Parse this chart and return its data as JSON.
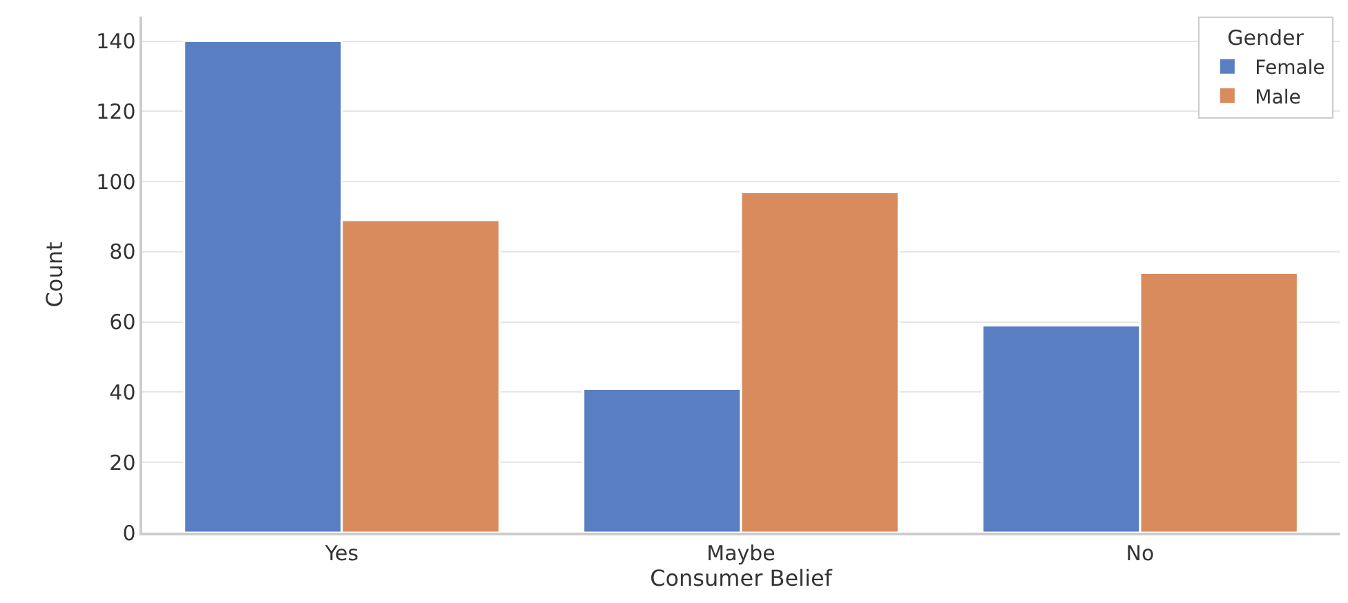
{
  "chart_data": {
    "type": "bar",
    "xlabel": "Consumer Belief",
    "ylabel": "Count",
    "legend_title": "Gender",
    "categories": [
      "Yes",
      "Maybe",
      "No"
    ],
    "series": [
      {
        "name": "Female",
        "color": "#5a7ec2",
        "values": [
          140,
          41,
          59
        ]
      },
      {
        "name": "Male",
        "color": "#d98b5e",
        "values": [
          89,
          97,
          74
        ]
      }
    ],
    "ylim": [
      0,
      147
    ],
    "yticks": [
      0,
      20,
      40,
      60,
      80,
      100,
      120,
      140
    ],
    "grid": "y",
    "legend": "top right"
  }
}
